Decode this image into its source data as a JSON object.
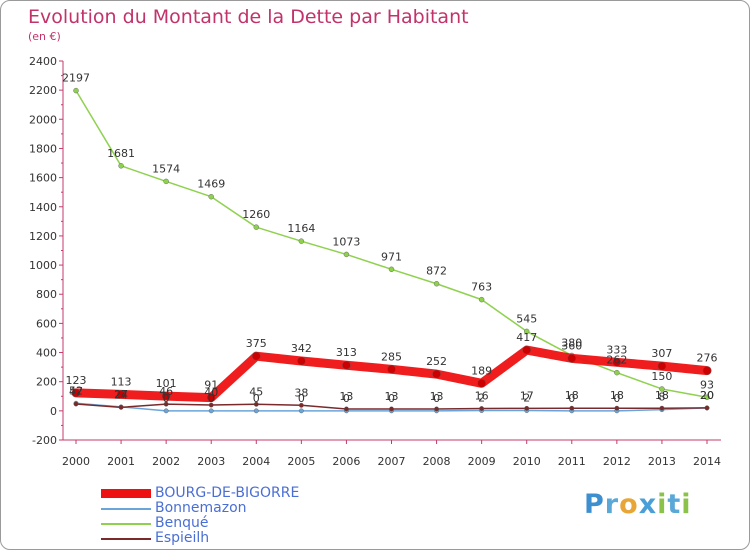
{
  "title": "Evolution du Montant de la Dette par Habitant",
  "subtitle": "(en €)",
  "logo": "Proxiti",
  "chart_data": {
    "type": "line",
    "title": "Evolution du Montant de la Dette par Habitant",
    "subtitle": "(en €)",
    "xlabel": "",
    "ylabel": "",
    "x": [
      "2000",
      "2001",
      "2002",
      "2003",
      "2004",
      "2005",
      "2006",
      "2007",
      "2008",
      "2009",
      "2010",
      "2011",
      "2012",
      "2013",
      "2014"
    ],
    "ylim": [
      -200,
      2400
    ],
    "yticks": [
      -200,
      0,
      200,
      400,
      600,
      800,
      1000,
      1200,
      1400,
      1600,
      1800,
      2000,
      2200,
      2400
    ],
    "legend_position": "bottom-left",
    "series": [
      {
        "name": "Benqué",
        "color": "#8fd14f",
        "values": [
          2197,
          1681,
          1574,
          1469,
          1260,
          1164,
          1073,
          971,
          872,
          763,
          545,
          380,
          262,
          150,
          93
        ],
        "labels": [
          "2197",
          "1681",
          "1574",
          "1469",
          "1260",
          "1164",
          "1073",
          "971",
          "872",
          "763",
          "545",
          "380",
          "262",
          "150",
          "93"
        ]
      },
      {
        "name": "Bonnemazon",
        "color": "#6aa5d9",
        "values": [
          52,
          27,
          0,
          0,
          0,
          0,
          0,
          0,
          0,
          2,
          2,
          0,
          0,
          8,
          20
        ],
        "labels": [
          "52",
          "27",
          "0",
          "0",
          "0",
          "0",
          "0",
          "0",
          "0",
          "2",
          "2",
          "0",
          "0",
          "8",
          "20"
        ]
      },
      {
        "name": "Espieilh",
        "color": "#7a2a2a",
        "values": [
          47,
          24,
          46,
          40,
          45,
          38,
          13,
          13,
          13,
          16,
          17,
          18,
          18,
          18,
          20
        ],
        "labels": [
          "47",
          "24",
          "46",
          "40",
          "45",
          "38",
          "13",
          "13",
          "13",
          "16",
          "17",
          "18",
          "18",
          "18",
          "20"
        ]
      },
      {
        "name": "BOURG-DE-BIGORRE",
        "color": "#ee1111",
        "values": [
          123,
          113,
          101,
          91,
          375,
          342,
          313,
          285,
          252,
          189,
          417,
          360,
          333,
          307,
          276
        ],
        "labels": [
          "123",
          "113",
          "101",
          "91",
          "375",
          "342",
          "313",
          "285",
          "252",
          "189",
          "417",
          "360",
          "333",
          "307",
          "276"
        ]
      }
    ],
    "legend_order": [
      "BOURG-DE-BIGORRE",
      "Bonnemazon",
      "Benqué",
      "Espieilh"
    ]
  }
}
